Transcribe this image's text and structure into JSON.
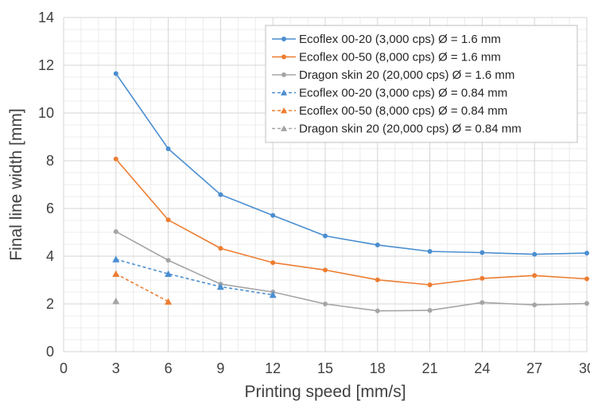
{
  "chart_data": {
    "type": "line",
    "title": "",
    "xlabel": "Printing speed [mm/s]",
    "ylabel": "Final line width [mm]",
    "xlim": [
      0,
      30
    ],
    "ylim": [
      0,
      14
    ],
    "xticks": [
      "0",
      "3",
      "6",
      "9",
      "12",
      "15",
      "18",
      "21",
      "24",
      "27",
      "30"
    ],
    "yticks": [
      "0",
      "2",
      "4",
      "6",
      "8",
      "10",
      "12",
      "14"
    ],
    "grid": true,
    "minor_grid": true,
    "legend_position": "top-right",
    "series": [
      {
        "name": "Ecoflex 00-20 (3,000 cps) Ø = 1.6 mm",
        "color": "#4a8ed0",
        "marker": "circle",
        "dashed": false,
        "x": [
          3,
          6,
          9,
          12,
          15,
          18,
          21,
          24,
          27,
          30
        ],
        "y": [
          11.65,
          8.5,
          6.58,
          5.71,
          4.85,
          4.47,
          4.2,
          4.15,
          4.08,
          4.13
        ]
      },
      {
        "name": "Ecoflex 00-50 (8,000 cps) Ø = 1.6 mm",
        "color": "#ed7d31",
        "marker": "circle",
        "dashed": false,
        "x": [
          3,
          6,
          9,
          12,
          15,
          18,
          21,
          24,
          27,
          30
        ],
        "y": [
          8.07,
          5.52,
          4.33,
          3.73,
          3.42,
          3.01,
          2.8,
          3.07,
          3.19,
          3.05
        ]
      },
      {
        "name": "Dragon skin 20 (20,000 cps) Ø = 1.6 mm",
        "color": "#a5a5a5",
        "marker": "circle",
        "dashed": false,
        "x": [
          3,
          6,
          9,
          12,
          15,
          18,
          21,
          24,
          27,
          30
        ],
        "y": [
          5.03,
          3.83,
          2.83,
          2.5,
          2.0,
          1.71,
          1.73,
          2.06,
          1.96,
          2.02
        ]
      },
      {
        "name": "Ecoflex 00-20 (3,000 cps) Ø = 0.84 mm",
        "color": "#4a8ed0",
        "marker": "triangle",
        "dashed": true,
        "x": [
          3,
          6,
          9,
          12
        ],
        "y": [
          3.87,
          3.26,
          2.72,
          2.38
        ]
      },
      {
        "name": "Ecoflex 00-50 (8,000 cps) Ø = 0.84 mm",
        "color": "#ed7d31",
        "marker": "triangle",
        "dashed": true,
        "x": [
          3,
          6
        ],
        "y": [
          3.26,
          2.1
        ]
      },
      {
        "name": "Dragon skin 20 (20,000 cps) Ø = 0.84 mm",
        "color": "#a5a5a5",
        "marker": "triangle",
        "dashed": true,
        "x": [
          3
        ],
        "y": [
          2.12
        ]
      }
    ]
  }
}
